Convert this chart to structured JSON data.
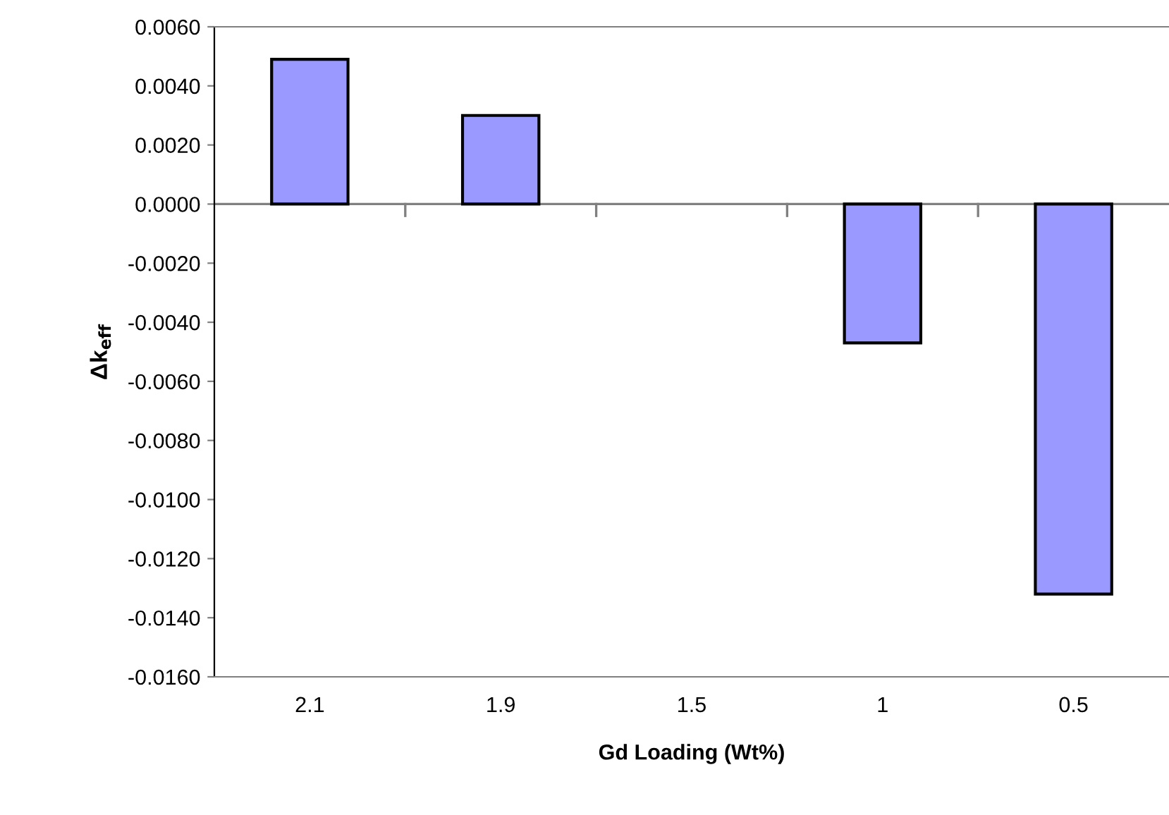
{
  "chart_data": {
    "type": "bar",
    "xlabel": "Gd Loading (Wt%)",
    "ylabel": "Δk$_{eff}$",
    "categories": [
      "2.1",
      "1.9",
      "1.5",
      "1",
      "0.5"
    ],
    "values": [
      0.0049,
      0.003,
      null,
      -0.0047,
      -0.0132
    ],
    "color": "#9999ff",
    "ylim": [
      -0.016,
      0.006
    ],
    "yticks": [
      {
        "value": 0.006,
        "label": "0.0060"
      },
      {
        "value": 0.004,
        "label": "0.0040"
      },
      {
        "value": 0.002,
        "label": "0.0020"
      },
      {
        "value": 0,
        "label": "0.0000"
      },
      {
        "value": -0.002,
        "label": "-0.0020"
      },
      {
        "value": -0.004,
        "label": "-0.0040"
      },
      {
        "value": -0.006,
        "label": "-0.0060"
      },
      {
        "value": -0.008,
        "label": "-0.0080"
      },
      {
        "value": -0.01,
        "label": "-0.0100"
      },
      {
        "value": -0.012,
        "label": "-0.0120"
      },
      {
        "value": -0.014,
        "label": "-0.0140"
      },
      {
        "value": -0.016,
        "label": "-0.0160"
      }
    ],
    "ref_lines": [
      {
        "axis": "y",
        "value": 0,
        "color": "#808080"
      }
    ],
    "grid": false,
    "legend": false
  }
}
